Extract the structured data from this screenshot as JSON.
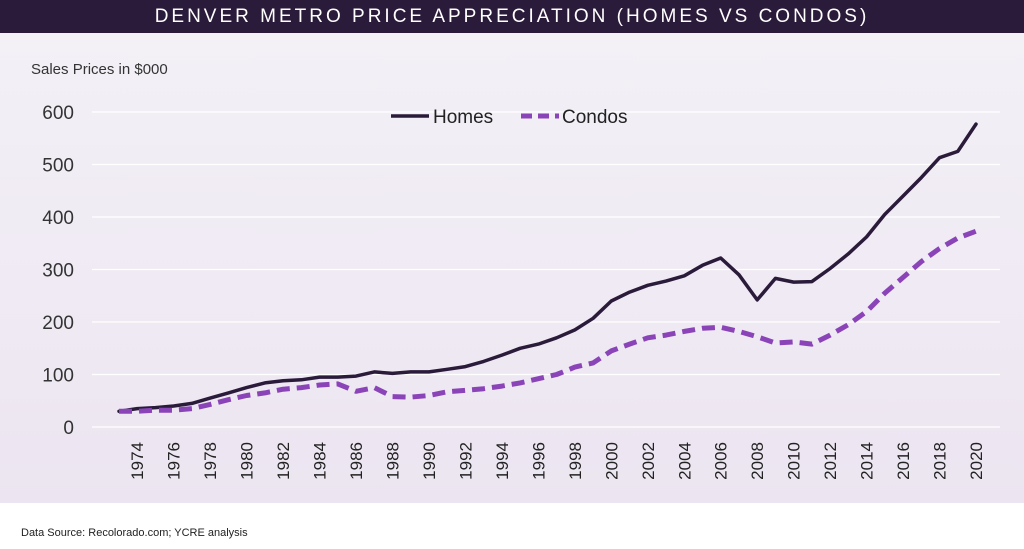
{
  "header": {
    "title": "DENVER METRO PRICE APPRECIATION (HOMES VS CONDOS)"
  },
  "footer": {
    "source": "Data Source: Recolorado.com; YCRE analysis"
  },
  "colors": {
    "title_bg": "#2b1b3b",
    "homes": "#2b1b3b",
    "condos": "#8a44b8",
    "grid": "#ffffff"
  },
  "chart_data": {
    "type": "line",
    "title": "DENVER METRO PRICE APPRECIATION (HOMES VS CONDOS)",
    "ylabel": "Sales Prices in $000",
    "xlabel": "",
    "ylim": [
      0,
      600
    ],
    "yticks": [
      0,
      100,
      200,
      300,
      400,
      500,
      600
    ],
    "grid": "horizontal",
    "legend_placement": "top-center",
    "x": [
      1973,
      1974,
      1975,
      1976,
      1977,
      1978,
      1979,
      1980,
      1981,
      1982,
      1983,
      1984,
      1985,
      1986,
      1987,
      1988,
      1989,
      1990,
      1991,
      1992,
      1993,
      1994,
      1995,
      1996,
      1997,
      1998,
      1999,
      2000,
      2001,
      2002,
      2003,
      2004,
      2005,
      2006,
      2007,
      2008,
      2009,
      2010,
      2011,
      2012,
      2013,
      2014,
      2015,
      2016,
      2017,
      2018,
      2019,
      2020
    ],
    "xticks": [
      "1974",
      "1976",
      "1978",
      "1980",
      "1982",
      "1984",
      "1986",
      "1988",
      "1990",
      "1992",
      "1994",
      "1996",
      "1998",
      "2000",
      "2002",
      "2004",
      "2006",
      "2008",
      "2010",
      "2012",
      "2014",
      "2016",
      "2018",
      "2020"
    ],
    "series": [
      {
        "name": "Homes",
        "style": "solid",
        "color": "#2b1b3b",
        "values": [
          30,
          35,
          37,
          40,
          45,
          55,
          65,
          75,
          84,
          88,
          90,
          95,
          95,
          97,
          105,
          102,
          105,
          105,
          110,
          115,
          125,
          137,
          150,
          158,
          170,
          185,
          207,
          240,
          257,
          270,
          278,
          288,
          308,
          322,
          290,
          242,
          283,
          276,
          277,
          302,
          330,
          362,
          405,
          440,
          475,
          513,
          525,
          577
        ]
      },
      {
        "name": "Condos",
        "style": "dashed",
        "color": "#8a44b8",
        "values": [
          30,
          30,
          32,
          32,
          35,
          43,
          52,
          60,
          65,
          72,
          75,
          80,
          82,
          68,
          75,
          58,
          57,
          60,
          67,
          70,
          73,
          78,
          84,
          92,
          100,
          114,
          122,
          145,
          158,
          170,
          175,
          182,
          188,
          190,
          182,
          172,
          160,
          162,
          158,
          175,
          195,
          220,
          255,
          285,
          315,
          340,
          360,
          373
        ]
      }
    ]
  }
}
